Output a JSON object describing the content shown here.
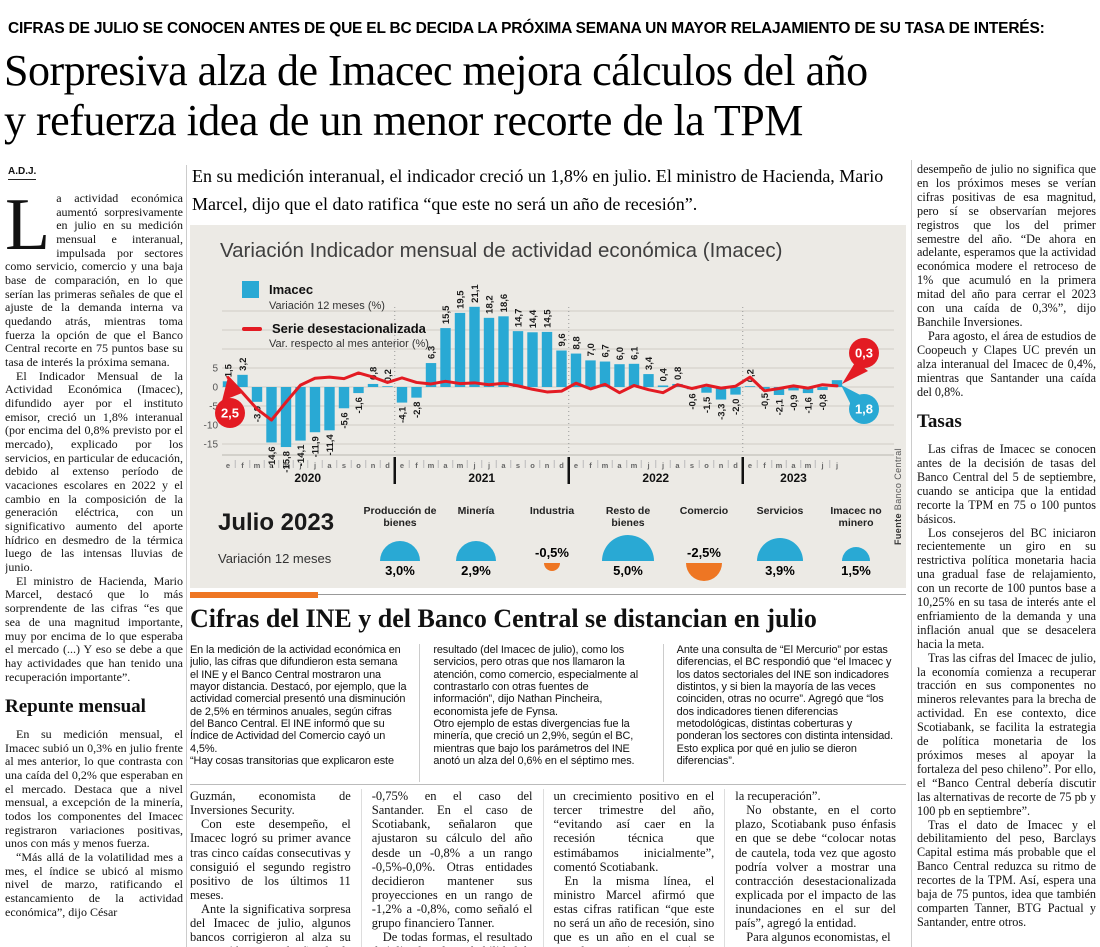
{
  "kicker": "CIFRAS DE JULIO SE CONOCEN ANTES DE QUE EL BC DECIDA LA PRÓXIMA SEMANA UN MAYOR RELAJAMIENTO DE SU TASA DE INTERÉS:",
  "headline_line1": "Sorpresiva alza de Imacec mejora cálculos del año",
  "headline_line2": "y refuerza idea de un menor recorte de la TPM",
  "byline": "A.D.J.",
  "lead": "En su medición interanual, el indicador creció un 1,8% en julio. El ministro de Hacienda, Mario Marcel, dijo que el dato ratifica “que este no será un año de recesión”.",
  "left_column": {
    "drop_cap": "L",
    "paragraphs": [
      "a actividad económica aumentó sorpresivamente en julio en su medición mensual e interanual, impulsada por sectores como servicio, comercio y una baja base de comparación, en lo que serían las primeras señales de que el ajuste de la demanda interna va quedando atrás, mientras toma fuerza la opción de que el Banco Central recorte en 75 puntos base su tasa de interés la próxima semana.",
      "El Indicador Mensual de la Actividad Económica (Imacec), difundido ayer por el instituto emisor, creció un 1,8% interanual (por encima del 0,8% previsto por el mercado), explicado por los servicios, en particular de educación, debido al extenso período de vacaciones escolares en 2022 y el cambio en la composición de la generación eléctrica, con un significativo aumento del aporte hídrico en desmedro de la térmica luego de las intensas lluvias de junio.",
      "El ministro de Hacienda, Mario Marcel, destacó que lo más sorprendente de las cifras “es que sea de una magnitud importante, muy por encima de lo que esperaba el mercado (...) Y eso se debe a que hay actividades que han tenido una recuperación importante”."
    ],
    "subhead": "Repunte mensual",
    "paragraphs_after": [
      "En su medición mensual, el Imacec subió un 0,3% en julio frente al mes anterior, lo que contrasta con una caída del 0,2% que esperaban en el mercado. Destaca que a nivel mensual, a excepción de la minería, todos los componentes del Imacec registraron variaciones positivas, unos con más y menos fuerza.",
      "“Más allá de la volatilidad mes a mes, el índice se ubicó al mismo nivel de marzo, ratificando el estancamiento de la actividad económica”, dijo César"
    ]
  },
  "right_column": {
    "paragraphs": [
      "desempeño de julio no significa que en los próximos meses se verían cifras positivas de esa magnitud, pero sí se observarían mejores registros que los del primer semestre del año. “De ahora en adelante, esperamos que la actividad económica modere el retroceso de 1% que acumuló en la primera mitad del año para cerrar el 2023 con una caída de 0,3%”, dijo Banchile Inversiones.",
      "Para agosto, el área de estudios de Coopeuch y Clapes UC prevén un alza interanual del Imacec de 0,4%, mientras que Santander una caída del 0,8%."
    ],
    "subhead": "Tasas",
    "paragraphs_after": [
      "Las cifras de Imacec se conocen antes de la decisión de tasas del Banco Central del 5 de septiembre, cuando se anticipa que la entidad recorte la TPM en 75 o 100 puntos básicos.",
      "Los consejeros del BC iniciaron recientemente un giro en su restrictiva política monetaria hacia una gradual fase de relajamiento, con un recorte de 100 puntos base a 10,25% en su tasa de interés ante el enfriamiento de la demanda y una inflación anual que se desacelera hacia la meta.",
      "Tras las cifras del Imacec de julio, la economía comienza a recuperar tracción en sus componentes no mineros relevantes para la brecha de actividad. En ese contexto, dice Scotiabank, se facilita la estrategia de política monetaria de los próximos meses al apoyar la fortaleza del peso chileno”. Por ello, el “Banco Central debería discutir las alternativas de recorte de 75 pb y 100 pb en septiembre”.",
      "Tras el dato de Imacec y el debilitamiento del peso, Barclays Capital estima más probable que el Banco Central reduzca su ritmo de recortes de la TPM. Así, espera una baja de 75 puntos, idea que también comparten Tanner, BTG Pactual y Santander, entre otros."
    ]
  },
  "chart_data": {
    "type": "bar",
    "title": "Variación Indicador mensual de actividad económica (Imacec)",
    "legend": [
      {
        "label": "Imacec",
        "sublabel": "Variación 12 meses (%)",
        "color": "#29a9d4",
        "kind": "bar"
      },
      {
        "label": "Serie desestacionalizada",
        "sublabel": "Var. respecto al mes anterior (%)",
        "color": "#e31b23",
        "kind": "line"
      }
    ],
    "colors": {
      "bar": "#29a9d4",
      "line": "#e31b23",
      "negative": "#ee7623"
    },
    "years": [
      {
        "label": "2020",
        "months": [
          "e",
          "f",
          "m",
          "a",
          "m",
          "j",
          "j",
          "a",
          "s",
          "o",
          "n",
          "d"
        ]
      },
      {
        "label": "2021",
        "months": [
          "e",
          "f",
          "m",
          "a",
          "m",
          "j",
          "j",
          "a",
          "s",
          "o",
          "n",
          "d"
        ]
      },
      {
        "label": "2022",
        "months": [
          "e",
          "f",
          "m",
          "a",
          "m",
          "j",
          "j",
          "a",
          "s",
          "o",
          "n",
          "d"
        ]
      },
      {
        "label": "2023",
        "months": [
          "e",
          "f",
          "m",
          "a",
          "m",
          "j",
          "j"
        ]
      }
    ],
    "bar_values": [
      1.5,
      3.2,
      -3.9,
      -14.6,
      -15.8,
      -14.1,
      -11.9,
      -11.4,
      -5.6,
      -1.6,
      0.8,
      0.2,
      -4.1,
      -2.8,
      6.3,
      15.5,
      19.5,
      21.1,
      18.2,
      18.6,
      14.7,
      14.4,
      14.5,
      9.6,
      8.8,
      7.0,
      6.7,
      6.0,
      6.1,
      3.4,
      0.4,
      0.8,
      -0.6,
      -1.5,
      -3.3,
      -2.0,
      0.2,
      -0.5,
      -2.1,
      -0.9,
      -1.6,
      -0.8,
      1.8
    ],
    "line_values_approx": [
      2.5,
      -1.5,
      -5.8,
      -8.7,
      -4.0,
      0.5,
      2.3,
      2.6,
      2.2,
      3.7,
      2.6,
      1.2,
      2.4,
      1.2,
      0.8,
      1.5,
      0.9,
      1.1,
      0.6,
      1.0,
      0.3,
      -0.6,
      -1.3,
      -1.1,
      1.0,
      -0.5,
      0.7,
      -1.5,
      0.4,
      -0.7,
      -1.5,
      0.6,
      -0.4,
      0.5,
      -0.3,
      0.2,
      2.6,
      -1.0,
      -0.4,
      0.3,
      -0.3,
      0.6,
      0.3
    ],
    "callouts": {
      "line_start": "2,5",
      "line_end": "0,3",
      "bar_end": "1,8"
    },
    "yticks": [
      5,
      0,
      -5,
      -10,
      -15
    ],
    "ylim": [
      -17,
      22
    ],
    "grid": true,
    "source_bold": "Fuente",
    "source_rest": "Banco Central",
    "gauges": {
      "title": "Julio 2023",
      "subtitle": "Variación 12 meses",
      "items": [
        {
          "label": "Producción de bienes",
          "value": 3.0,
          "display": "3,0%"
        },
        {
          "label": "Minería",
          "value": 2.9,
          "display": "2,9%"
        },
        {
          "label": "Industria",
          "value": -0.5,
          "display": "-0,5%"
        },
        {
          "label": "Resto de bienes",
          "value": 5.0,
          "display": "5,0%"
        },
        {
          "label": "Comercio",
          "value": -2.5,
          "display": "-2,5%"
        },
        {
          "label": "Servicios",
          "value": 3.9,
          "display": "3,9%"
        },
        {
          "label": "Imacec no minero",
          "value": 1.5,
          "display": "1,5%"
        }
      ]
    }
  },
  "subarticle": {
    "headline": "Cifras del INE y del Banco Central se distancian en julio",
    "columns": [
      [
        "En la medición de la actividad económica en julio, las cifras que difundieron esta semana el INE y el Banco Central mostraron una mayor distancia. Destacó, por ejemplo, que la actividad comercial presentó una disminución de 2,5% en términos anuales, según cifras del Banco Central. El INE informó que su Índice de Actividad del Comercio cayó un 4,5%.",
        "“Hay cosas transitorias que explicaron este"
      ],
      [
        "resultado (del Imacec de julio), como los servicios, pero otras que nos llamaron la atención, como comercio, especialmente al contrastarlo con otras fuentes de información”, dijo Nathan Pincheira, economista jefe de Fynsa.",
        "Otro ejemplo de estas divergencias fue la minería, que creció un 2,9%, según el BC, mientras que bajo los parámetros del INE anotó un alza del 0,6% en el séptimo mes."
      ],
      [
        "Ante una consulta de “El Mercurio” por estas diferencias, el BC respondió que “el Imacec y los datos sectoriales del INE son indicadores distintos, y si bien la mayoría de las veces coinciden, otras no ocurre”. Agregó que “los dos indicadores tienen diferencias metodológicas, distintas coberturas y ponderan los sectores con distinta intensidad. Esto explica por qué en julio se dieron diferencias”."
      ]
    ]
  },
  "bottom_columns": [
    [
      "Guzmán, economista de Inversiones Security.",
      "Con este desempeño, el Imacec logró su primer avance tras cinco caídas consecutivas y consiguió el segundo registro positivo de los últimos 11 meses.",
      "Ante la significativa sorpresa del Imacec de julio, algunos bancos corrigieron al alza su proyección para el año desde -1% hasta"
    ],
    [
      "-0,75% en el caso del Santander. En el caso de Scotiabank, señalaron que ajustaron su cálculo del año desde un -0,8% a un rango -0,5%-0,0%. Otras entidades decidieron mantener sus proyecciones en un rango de -1,2% a -0,8%, como señaló el grupo financiero Tanner.",
      "De todas formas, el resultado de julio eleva la probabilidad de"
    ],
    [
      "un crecimiento positivo en el tercer trimestre del año, “evitando así caer en la recesión técnica que estimábamos inicialmente”, comentó Scotiabank.",
      "En la misma línea, el ministro Marcel afirmó que estas cifras ratifican “que este no será un año de recesión, sino que es un año en el cual se completa un ajuste y comienza a producirse"
    ],
    [
      "la recuperación”.",
      "No obstante, en el corto plazo, Scotiabank puso énfasis en que se debe “colocar notas de cautela, toda vez que agosto podría volver a mostrar una contracción desestacionalizada explicada por el impacto de las inundaciones en el sur del país”, agregó la entidad.",
      "Para algunos economistas, el"
    ]
  ]
}
